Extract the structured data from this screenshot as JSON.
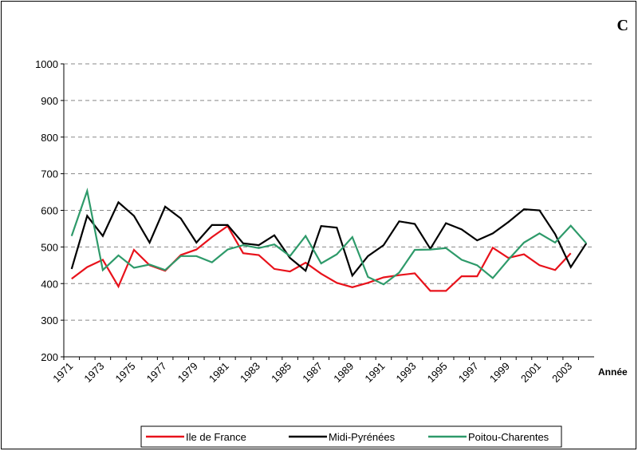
{
  "chart_data": {
    "type": "line",
    "corner_label": "C",
    "x_label": "Année",
    "categories": [
      "1971",
      null,
      "1973",
      null,
      "1975",
      null,
      "1977",
      null,
      "1979",
      null,
      "1981",
      null,
      "1983",
      null,
      "1985",
      null,
      "1987",
      null,
      "1989",
      null,
      "1991",
      null,
      "1993",
      null,
      "1995",
      null,
      "1997",
      null,
      "1999",
      null,
      "2001",
      null,
      "2003",
      null
    ],
    "series": [
      {
        "name": "Ile de France",
        "color": "#e8121b",
        "values": [
          413,
          445,
          465,
          392,
          492,
          450,
          435,
          478,
          493,
          527,
          557,
          483,
          478,
          440,
          433,
          457,
          427,
          402,
          390,
          402,
          417,
          423,
          428,
          380,
          380,
          420,
          420,
          498,
          470,
          480,
          450,
          437,
          483,
          null
        ]
      },
      {
        "name": "Midi-Pyrénées",
        "color": "#000000",
        "values": [
          440,
          585,
          530,
          622,
          585,
          512,
          610,
          578,
          512,
          560,
          560,
          510,
          505,
          532,
          470,
          435,
          557,
          553,
          422,
          475,
          505,
          570,
          563,
          495,
          565,
          548,
          518,
          537,
          568,
          603,
          600,
          535,
          445,
          510
        ]
      },
      {
        "name": "Poitou-Charentes",
        "color": "#2e9a6a",
        "values": [
          530,
          653,
          437,
          477,
          443,
          452,
          437,
          475,
          475,
          458,
          493,
          505,
          497,
          507,
          475,
          530,
          455,
          480,
          527,
          418,
          398,
          430,
          492,
          493,
          497,
          465,
          450,
          415,
          465,
          512,
          537,
          512,
          558,
          510
        ]
      }
    ],
    "ylim": [
      200,
      1000
    ],
    "yticks": [
      200,
      300,
      400,
      500,
      600,
      700,
      800,
      900,
      1000
    ],
    "grid": true,
    "legend": "bottom"
  }
}
